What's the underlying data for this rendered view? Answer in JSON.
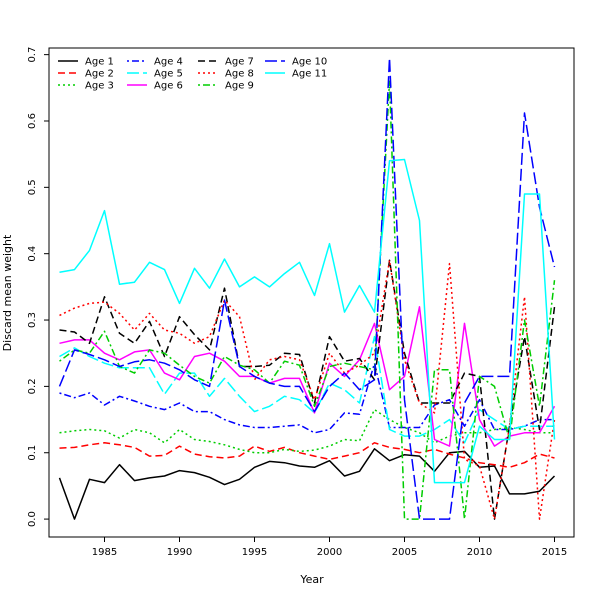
{
  "chart_data": {
    "type": "line",
    "title": "",
    "xlabel": "Year",
    "ylabel": "Discard mean weight",
    "xlim": [
      1981.3,
      2016.3
    ],
    "ylim": [
      -0.027,
      0.71
    ],
    "xticks": [
      1985,
      1990,
      1995,
      2000,
      2005,
      2010,
      2015
    ],
    "yticks": [
      0.0,
      0.1,
      0.2,
      0.3,
      0.4,
      0.5,
      0.6,
      0.7
    ],
    "ytick_labels": [
      "0.0",
      "0.1",
      "0.2",
      "0.3",
      "0.4",
      "0.5",
      "0.6",
      "0.7"
    ],
    "legend_position": "top-left",
    "x": [
      1982,
      1983,
      1984,
      1985,
      1986,
      1987,
      1988,
      1989,
      1990,
      1991,
      1992,
      1993,
      1994,
      1995,
      1996,
      1997,
      1998,
      1999,
      2000,
      2001,
      2002,
      2003,
      2004,
      2005,
      2006,
      2007,
      2008,
      2009,
      2010,
      2011,
      2012,
      2013,
      2014,
      2015
    ],
    "series": [
      {
        "name": "Age 1",
        "color": "#000000",
        "dash": "solid",
        "values": [
          0.062,
          0.0,
          0.06,
          0.055,
          0.082,
          0.058,
          0.062,
          0.065,
          0.073,
          0.07,
          0.063,
          0.052,
          0.06,
          0.078,
          0.087,
          0.085,
          0.08,
          0.078,
          0.088,
          0.065,
          0.072,
          0.106,
          0.088,
          0.097,
          0.095,
          0.072,
          0.1,
          0.102,
          0.078,
          0.08,
          0.038,
          0.038,
          0.042,
          0.065
        ]
      },
      {
        "name": "Age 2",
        "color": "#ff0000",
        "dash": "dashed",
        "values": [
          0.107,
          0.108,
          0.112,
          0.115,
          0.112,
          0.108,
          0.095,
          0.096,
          0.11,
          0.098,
          0.094,
          0.092,
          0.095,
          0.11,
          0.102,
          0.108,
          0.1,
          0.095,
          0.09,
          0.095,
          0.1,
          0.115,
          0.108,
          0.105,
          0.1,
          0.105,
          0.098,
          0.092,
          0.085,
          0.082,
          0.078,
          0.085,
          0.098,
          0.092
        ]
      },
      {
        "name": "Age 3",
        "color": "#00cd00",
        "dash": "dotted",
        "values": [
          0.13,
          0.133,
          0.135,
          0.133,
          0.122,
          0.135,
          0.13,
          0.115,
          0.135,
          0.12,
          0.117,
          0.112,
          0.105,
          0.1,
          0.1,
          0.105,
          0.102,
          0.104,
          0.11,
          0.12,
          0.118,
          0.165,
          0.15,
          0.138,
          0.13,
          0.115,
          0.125,
          0.13,
          0.13,
          0.135,
          0.138,
          0.135,
          0.13,
          0.13
        ]
      },
      {
        "name": "Age 4",
        "color": "#0000ff",
        "dash": "dotdash",
        "values": [
          0.19,
          0.183,
          0.19,
          0.172,
          0.185,
          0.178,
          0.17,
          0.165,
          0.175,
          0.162,
          0.162,
          0.15,
          0.142,
          0.138,
          0.138,
          0.14,
          0.142,
          0.13,
          0.135,
          0.16,
          0.158,
          0.235,
          0.138,
          0.138,
          0.138,
          0.172,
          0.18,
          0.14,
          0.18,
          0.135,
          0.135,
          0.14,
          0.15,
          0.15
        ]
      },
      {
        "name": "Age 5",
        "color": "#00ffff",
        "dash": "longdash",
        "values": [
          0.245,
          0.258,
          0.245,
          0.235,
          0.228,
          0.228,
          0.228,
          0.188,
          0.22,
          0.22,
          0.185,
          0.212,
          0.185,
          0.162,
          0.17,
          0.185,
          0.18,
          0.16,
          0.205,
          0.195,
          0.175,
          0.275,
          0.135,
          0.125,
          0.125,
          0.135,
          0.15,
          0.115,
          0.165,
          0.15,
          0.135,
          0.14,
          0.14,
          0.14
        ]
      },
      {
        "name": "Age 6",
        "color": "#ff00ff",
        "dash": "solid",
        "values": [
          0.265,
          0.27,
          0.27,
          0.25,
          0.24,
          0.252,
          0.255,
          0.22,
          0.21,
          0.245,
          0.25,
          0.238,
          0.215,
          0.215,
          0.205,
          0.212,
          0.212,
          0.16,
          0.235,
          0.215,
          0.24,
          0.295,
          0.195,
          0.215,
          0.32,
          0.12,
          0.11,
          0.295,
          0.15,
          0.11,
          0.125,
          0.13,
          0.13,
          0.17
        ]
      },
      {
        "name": "Age 7",
        "color": "#000000",
        "dash": "dashed",
        "values": [
          0.285,
          0.282,
          0.265,
          0.335,
          0.28,
          0.265,
          0.298,
          0.245,
          0.305,
          0.278,
          0.255,
          0.348,
          0.23,
          0.23,
          0.232,
          0.25,
          0.248,
          0.175,
          0.275,
          0.238,
          0.242,
          0.21,
          0.39,
          0.25,
          0.175,
          0.175,
          0.175,
          0.22,
          0.215,
          0.0,
          0.14,
          0.275,
          0.135,
          0.32
        ]
      },
      {
        "name": "Age 8",
        "color": "#ff0000",
        "dash": "dotted",
        "values": [
          0.307,
          0.318,
          0.325,
          0.327,
          0.31,
          0.285,
          0.31,
          0.285,
          0.28,
          0.265,
          0.275,
          0.33,
          0.305,
          0.21,
          0.24,
          0.245,
          0.24,
          0.18,
          0.25,
          0.22,
          0.232,
          0.25,
          0.39,
          0.24,
          0.175,
          0.16,
          0.385,
          0.09,
          0.08,
          0.0,
          0.14,
          0.335,
          0.0,
          0.15
        ]
      },
      {
        "name": "Age 9",
        "color": "#00cd00",
        "dash": "dotdash",
        "values": [
          0.238,
          0.255,
          0.25,
          0.283,
          0.23,
          0.22,
          0.255,
          0.25,
          0.232,
          0.215,
          0.205,
          0.245,
          0.232,
          0.225,
          0.205,
          0.238,
          0.232,
          0.17,
          0.23,
          0.235,
          0.23,
          0.225,
          0.66,
          0.0,
          0.0,
          0.225,
          0.225,
          0.0,
          0.215,
          0.2,
          0.12,
          0.3,
          0.17,
          0.36
        ]
      },
      {
        "name": "Age 10",
        "color": "#0000ff",
        "dash": "longdash",
        "values": [
          0.2,
          0.255,
          0.248,
          0.24,
          0.23,
          0.237,
          0.24,
          0.235,
          0.225,
          0.21,
          0.2,
          0.33,
          0.23,
          0.215,
          0.205,
          0.2,
          0.2,
          0.162,
          0.2,
          0.22,
          0.195,
          0.21,
          0.695,
          0.18,
          0.0,
          0.0,
          0.0,
          0.175,
          0.215,
          0.215,
          0.215,
          0.612,
          0.47,
          0.38
        ]
      },
      {
        "name": "Age 11",
        "color": "#00ffff",
        "dash": "solid",
        "values": [
          0.372,
          0.376,
          0.405,
          0.465,
          0.354,
          0.357,
          0.387,
          0.376,
          0.325,
          0.378,
          0.348,
          0.392,
          0.35,
          0.365,
          0.35,
          0.37,
          0.387,
          0.337,
          0.415,
          0.312,
          0.352,
          0.312,
          0.54,
          0.542,
          0.45,
          0.055,
          0.055,
          0.055,
          0.14,
          0.12,
          0.12,
          0.49,
          0.49,
          0.12
        ]
      }
    ]
  }
}
